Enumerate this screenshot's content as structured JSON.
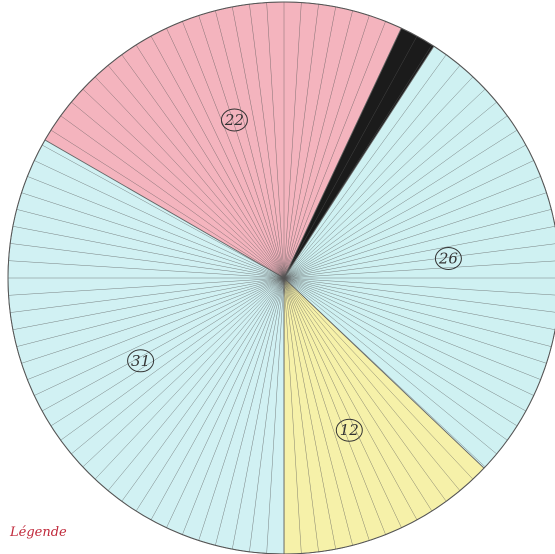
{
  "chart_data": {
    "type": "pie",
    "slices": [
      {
        "label": "22",
        "value": 22,
        "color": "#f2a7b3"
      },
      {
        "label": "",
        "value": 2,
        "color": "#1b1b1b"
      },
      {
        "label": "26",
        "value": 26,
        "color": "#c7eff0"
      },
      {
        "label": "12",
        "value": 12,
        "color": "#f4ef9a"
      },
      {
        "label": "31",
        "value": 31,
        "color": "#c9eef1"
      }
    ],
    "legend_title": "Légende",
    "radial_lines": 100
  }
}
